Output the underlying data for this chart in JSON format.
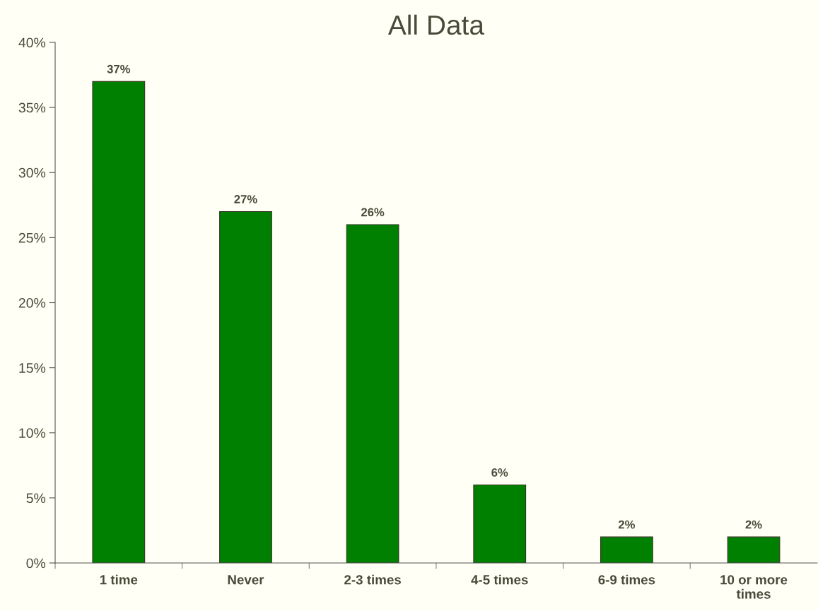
{
  "chart_data": {
    "type": "bar",
    "title": "All Data",
    "categories": [
      "1 time",
      "Never",
      "2-3 times",
      "4-5 times",
      "6-9 times",
      "10 or more\ntimes"
    ],
    "values": [
      37,
      27,
      26,
      6,
      2,
      2
    ],
    "value_labels": [
      "37%",
      "27%",
      "26%",
      "6%",
      "2%",
      "2%"
    ],
    "color": "#008000",
    "ylim": [
      0,
      40
    ],
    "yticks": [
      {
        "value": 0,
        "label": "0%"
      },
      {
        "value": 5,
        "label": "5%"
      },
      {
        "value": 10,
        "label": "10%"
      },
      {
        "value": 15,
        "label": "15%"
      },
      {
        "value": 20,
        "label": "20%"
      },
      {
        "value": 25,
        "label": "25%"
      },
      {
        "value": 30,
        "label": "30%"
      },
      {
        "value": 35,
        "label": "35%"
      },
      {
        "value": 40,
        "label": "40%"
      }
    ],
    "grid": false,
    "legend": false
  }
}
